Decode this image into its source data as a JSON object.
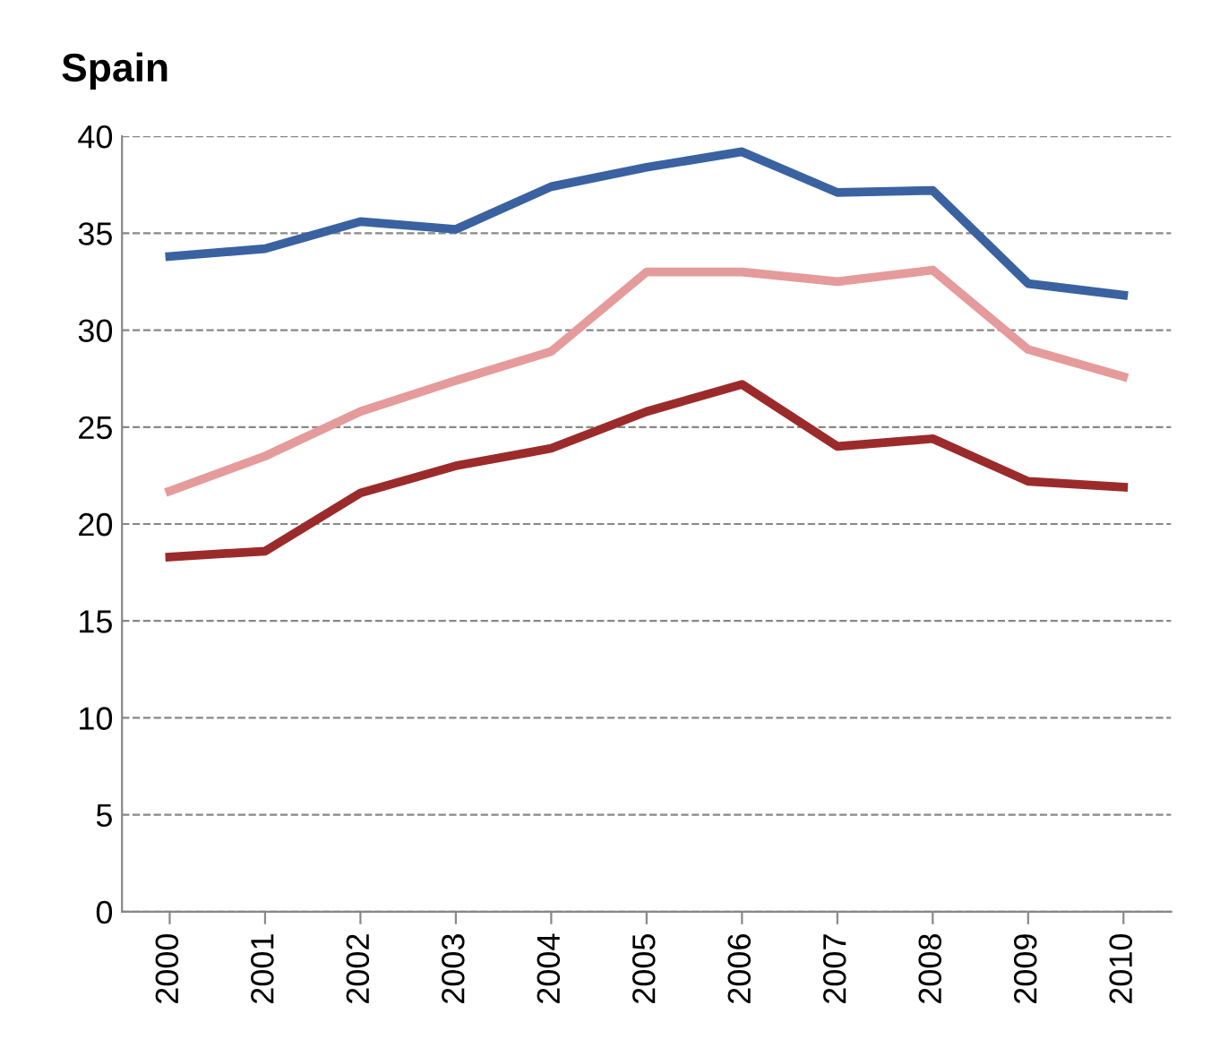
{
  "chart_data": {
    "type": "line",
    "title": "Spain",
    "categories": [
      "2000",
      "2001",
      "2002",
      "2003",
      "2004",
      "2005",
      "2006",
      "2007",
      "2008",
      "2009",
      "2010"
    ],
    "series": [
      {
        "color": "#3a62a0",
        "values": [
          33.8,
          34.2,
          35.6,
          35.2,
          37.4,
          38.4,
          39.2,
          37.1,
          37.2,
          32.4,
          31.8
        ]
      },
      {
        "color": "#e59b9b",
        "values": [
          21.7,
          23.5,
          25.8,
          27.4,
          28.9,
          33.0,
          33.0,
          32.5,
          33.1,
          29.0,
          27.6
        ]
      },
      {
        "color": "#9b2b2b",
        "values": [
          18.3,
          18.6,
          21.6,
          23.0,
          23.9,
          25.8,
          27.2,
          24.0,
          24.4,
          22.2,
          21.9
        ]
      }
    ],
    "ylim": [
      0,
      40
    ],
    "yticks": [
      0,
      5,
      10,
      15,
      20,
      25,
      30,
      35,
      40
    ],
    "grid": "y",
    "marker": "none",
    "line_style": "solid"
  }
}
